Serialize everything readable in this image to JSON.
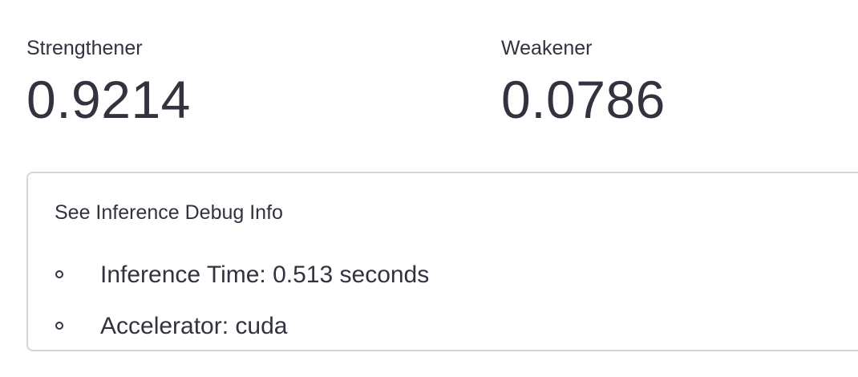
{
  "metrics": [
    {
      "label": "Strengthener",
      "value": "0.9214"
    },
    {
      "label": "Weakener",
      "value": "0.0786"
    }
  ],
  "expander": {
    "title": "See Inference Debug Info",
    "items": [
      {
        "text": "Inference Time: 0.513 seconds"
      },
      {
        "text": "Accelerator: cuda"
      }
    ]
  }
}
